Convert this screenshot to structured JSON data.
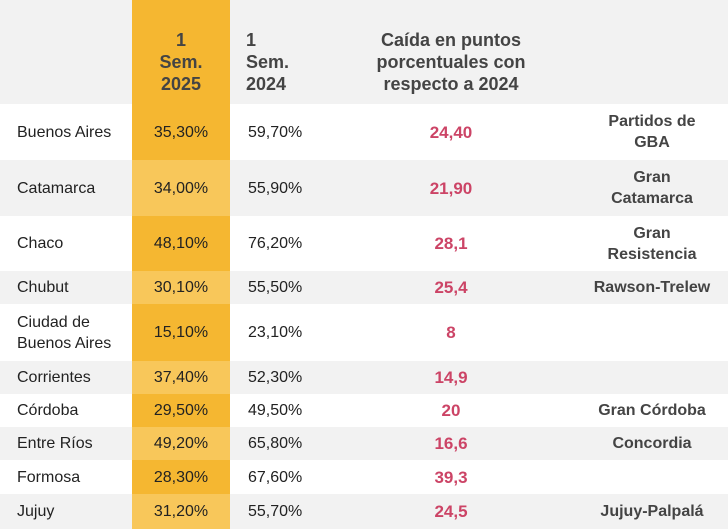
{
  "headers": {
    "provincia": "",
    "sem2025": "1\nSem.\n2025",
    "sem2024": "1\nSem.\n2024",
    "caida": "Caída en puntos\nporcentuales con\nrespecto a 2024",
    "aglomerado": ""
  },
  "rows": [
    {
      "provincia": "Buenos Aires",
      "sem2025": "35,30%",
      "sem2024": "59,70%",
      "caida": "24,40",
      "aglomerado": "Partidos de GBA"
    },
    {
      "provincia": "Catamarca",
      "sem2025": "34,00%",
      "sem2024": "55,90%",
      "caida": "21,90",
      "aglomerado": "Gran Catamarca"
    },
    {
      "provincia": "Chaco",
      "sem2025": "48,10%",
      "sem2024": "76,20%",
      "caida": "28,1",
      "aglomerado": "Gran Resistencia"
    },
    {
      "provincia": "Chubut",
      "sem2025": "30,10%",
      "sem2024": "55,50%",
      "caida": "25,4",
      "aglomerado": "Rawson-Trelew"
    },
    {
      "provincia": "Ciudad de Buenos Aires",
      "sem2025": "15,10%",
      "sem2024": "23,10%",
      "caida": "8",
      "aglomerado": ""
    },
    {
      "provincia": "Corrientes",
      "sem2025": "37,40%",
      "sem2024": "52,30%",
      "caida": "14,9",
      "aglomerado": ""
    },
    {
      "provincia": "Córdoba",
      "sem2025": "29,50%",
      "sem2024": "49,50%",
      "caida": "20",
      "aglomerado": "Gran Córdoba"
    },
    {
      "provincia": "Entre Ríos",
      "sem2025": "49,20%",
      "sem2024": "65,80%",
      "caida": "16,6",
      "aglomerado": "Concordia"
    },
    {
      "provincia": "Formosa",
      "sem2025": "28,30%",
      "sem2024": "67,60%",
      "caida": "39,3",
      "aglomerado": ""
    },
    {
      "provincia": "Jujuy",
      "sem2025": "31,20%",
      "sem2024": "55,70%",
      "caida": "24,5",
      "aglomerado": "Jujuy-Palpalá"
    }
  ]
}
